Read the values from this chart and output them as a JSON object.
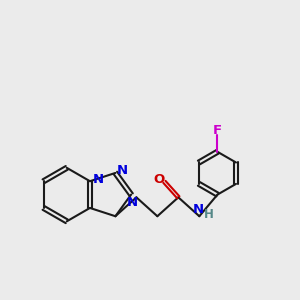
{
  "bg_color": "#ebebeb",
  "bond_color": "#1a1a1a",
  "N_color": "#0000dd",
  "O_color": "#cc0000",
  "F_color": "#cc00cc",
  "NH_color": "#558888",
  "line_width": 1.5,
  "font_size": 9.5,
  "figsize": [
    3.0,
    3.0
  ],
  "dpi": 100,
  "xlim": [
    0,
    10
  ],
  "ylim": [
    0,
    10
  ]
}
